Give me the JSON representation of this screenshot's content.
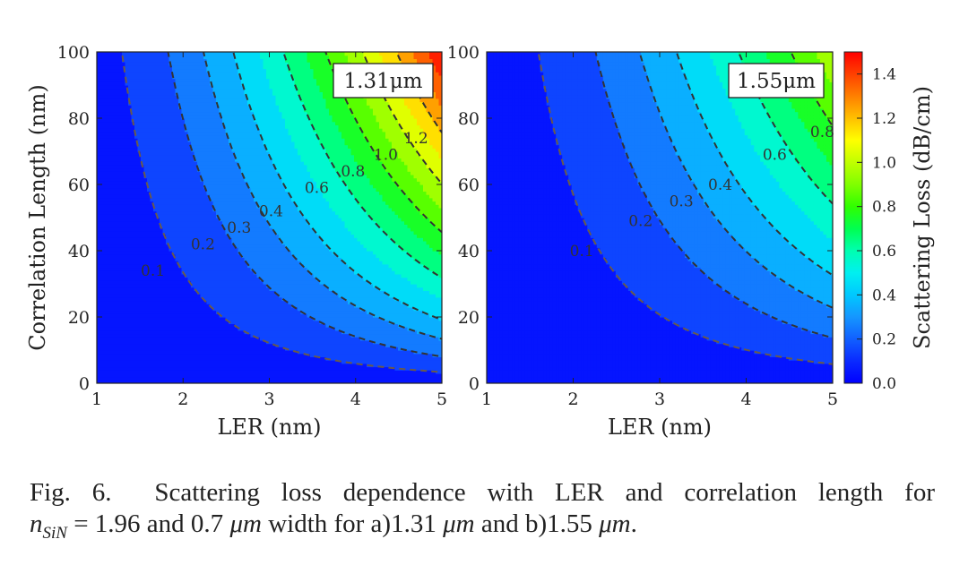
{
  "chart_data": [
    {
      "type": "contour",
      "panel_label": "1.31μm",
      "wavelength_um": 1.31,
      "xlabel": "LER (nm)",
      "ylabel": "Correlation Length (nm)",
      "xlim": [
        1,
        5
      ],
      "ylim": [
        0,
        100
      ],
      "x_ticks": [
        "1",
        "2",
        "3",
        "4",
        "5"
      ],
      "y_ticks": [
        "0",
        "20",
        "40",
        "60",
        "80",
        "100"
      ],
      "max_loss_dB_per_cm": 1.5,
      "contour_levels": [
        {
          "level": 0.1,
          "label": "0.1",
          "label_at": [
            1.65,
            34
          ]
        },
        {
          "level": 0.2,
          "label": "0.2",
          "label_at": [
            2.23,
            42
          ]
        },
        {
          "level": 0.3,
          "label": "0.3",
          "label_at": [
            2.65,
            47
          ]
        },
        {
          "level": 0.4,
          "label": "0.4",
          "label_at": [
            3.02,
            52
          ]
        },
        {
          "level": 0.6,
          "label": "0.6",
          "label_at": [
            3.55,
            59
          ]
        },
        {
          "level": 0.8,
          "label": "0.8",
          "label_at": [
            3.97,
            64
          ]
        },
        {
          "level": 1.0,
          "label": "1.0",
          "label_at": [
            4.35,
            69
          ]
        },
        {
          "level": 1.2,
          "label": "1.2",
          "label_at": [
            4.7,
            74
          ]
        }
      ]
    },
    {
      "type": "contour",
      "panel_label": "1.55μm",
      "wavelength_um": 1.55,
      "xlabel": "LER (nm)",
      "ylabel": "",
      "xlim": [
        1,
        5
      ],
      "ylim": [
        0,
        100
      ],
      "x_ticks": [
        "1",
        "2",
        "3",
        "4",
        "5"
      ],
      "y_ticks": [
        "0",
        "20",
        "40",
        "60",
        "80",
        "100"
      ],
      "max_loss_dB_per_cm": 0.98,
      "contour_levels": [
        {
          "level": 0.1,
          "label": "0.1",
          "label_at": [
            2.1,
            40
          ]
        },
        {
          "level": 0.2,
          "label": "0.2",
          "label_at": [
            2.78,
            49
          ]
        },
        {
          "level": 0.3,
          "label": "0.3",
          "label_at": [
            3.25,
            55
          ]
        },
        {
          "level": 0.4,
          "label": "0.4",
          "label_at": [
            3.7,
            60
          ]
        },
        {
          "level": 0.6,
          "label": "0.6",
          "label_at": [
            4.33,
            69
          ]
        },
        {
          "level": 0.8,
          "label": "0.8",
          "label_at": [
            4.88,
            76
          ]
        }
      ]
    }
  ],
  "colorbar": {
    "label": "Scattering Loss (dB/cm)",
    "min": 0.0,
    "max": 1.5,
    "ticks": [
      "0.0",
      "0.2",
      "0.4",
      "0.6",
      "0.8",
      "1.0",
      "1.2",
      "1.4"
    ],
    "tick_values": [
      0.0,
      0.2,
      0.4,
      0.6,
      0.8,
      1.0,
      1.2,
      1.4
    ]
  },
  "caption": {
    "fig_label": "Fig. 6.",
    "line1": "Scattering loss dependence with LER and correlation length for",
    "n_symbol": "n",
    "n_subscript": "SiN",
    "eq": " = 1.96 and 0.7 ",
    "um1": "μm",
    "mid": " width for a)1.31 ",
    "um2": "μm",
    "and_b": " and b)1.55 ",
    "um3": "μm",
    "end": "."
  }
}
